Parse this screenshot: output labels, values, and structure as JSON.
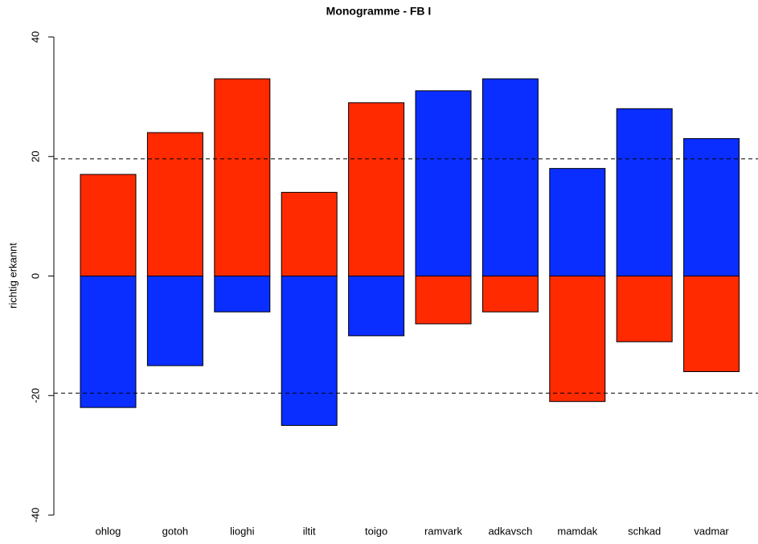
{
  "chart_data": {
    "type": "bar",
    "title": "Monogramme - FB I",
    "y_label": "richtig erkannt",
    "categories": [
      "ohlog",
      "gotoh",
      "lioghi",
      "iltit",
      "toigo",
      "ramvark",
      "adkavsch",
      "mamdak",
      "schkad",
      "vadmar"
    ],
    "series": [
      {
        "color": "#ff2a00",
        "values": [
          17,
          24,
          33,
          14,
          29,
          -8,
          -6,
          -21,
          -11,
          -16
        ]
      },
      {
        "color": "#0a2eff",
        "values": [
          -22,
          -15,
          -6,
          -25,
          -10,
          31,
          33,
          18,
          28,
          23
        ]
      }
    ],
    "ylim": [
      -40,
      40
    ],
    "yticks": [
      -40,
      -20,
      0,
      20,
      40
    ],
    "reference_lines": [
      19.6,
      -19.6
    ]
  }
}
